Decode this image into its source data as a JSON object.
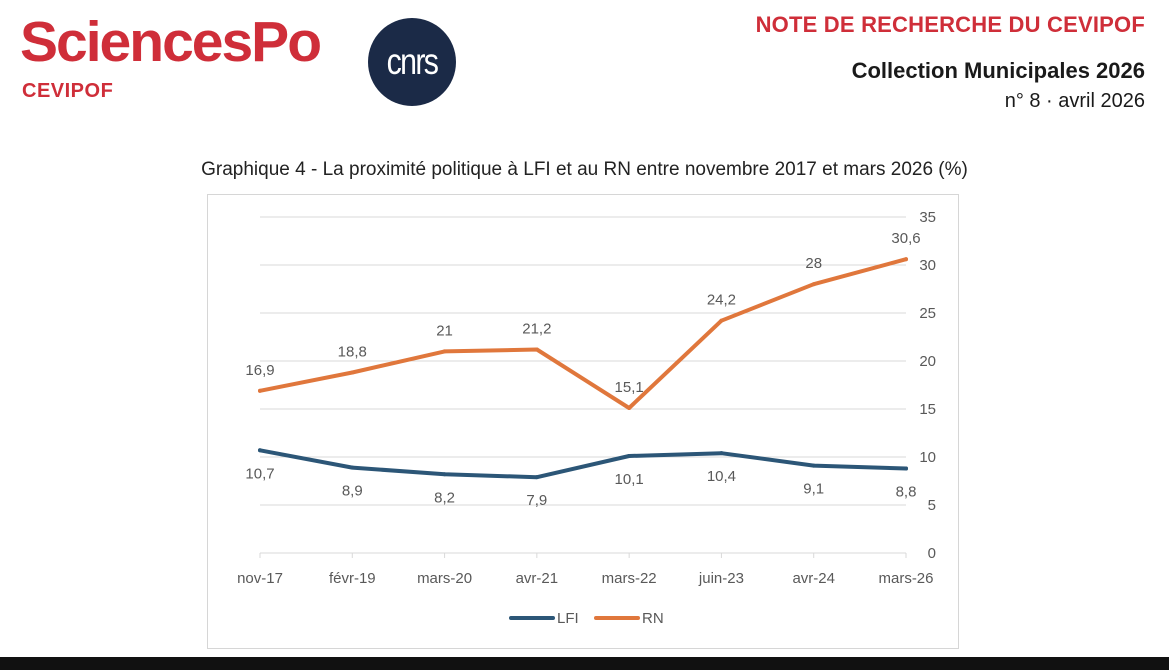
{
  "header": {
    "logo_main": "SciencesPo",
    "logo_sub": "CEVIPOF",
    "cnrs_logo": "cnrs",
    "note_title": "NOTE DE RECHERCHE DU CEVIPOF",
    "collection": "Collection Municipales 2026",
    "issue": "n° 8 · avril 2026"
  },
  "colors": {
    "brand_red": "#cf2e39",
    "cnrs_navy": "#1b2a47",
    "lfi": "#2c5677",
    "rn": "#e0773c",
    "grid": "#d9d9d9",
    "text": "#595959"
  },
  "chart_data": {
    "type": "line",
    "title": "Graphique 4 - La proximité politique à LFI et au RN entre novembre 2017 et mars 2026 (%)",
    "categories": [
      "nov-17",
      "févr-19",
      "mars-20",
      "avr-21",
      "mars-22",
      "juin-23",
      "avr-24",
      "mars-26"
    ],
    "series": [
      {
        "name": "LFI",
        "values": [
          10.7,
          8.9,
          8.2,
          7.9,
          10.1,
          10.4,
          9.1,
          8.8
        ],
        "labels": [
          "10,7",
          "8,9",
          "8,2",
          "7,9",
          "10,1",
          "10,4",
          "9,1",
          "8,8"
        ]
      },
      {
        "name": "RN",
        "values": [
          16.9,
          18.8,
          21,
          21.2,
          15.1,
          24.2,
          28,
          30.6
        ],
        "labels": [
          "16,9",
          "18,8",
          "21",
          "21,2",
          "15,1",
          "24,2",
          "28",
          "30,6"
        ]
      }
    ],
    "yaxis": {
      "side": "right",
      "ylim": [
        0,
        35
      ],
      "ticks": [
        "0",
        "5",
        "10",
        "15",
        "20",
        "25",
        "30",
        "35"
      ]
    },
    "grid": true,
    "legend": "bottom-center"
  }
}
